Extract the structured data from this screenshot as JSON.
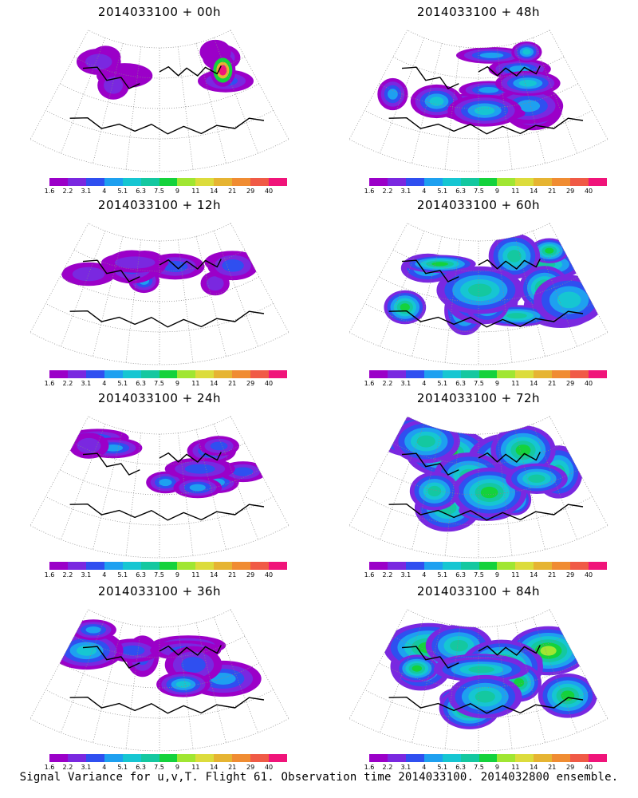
{
  "figure": {
    "caption": "Signal Variance for u,v,T. Flight 61. Observation time 2014033100. 2014032800 ensemble."
  },
  "colorbar": {
    "labels": [
      "1.6",
      "2.2",
      "3.1",
      "4",
      "5.1",
      "6.3",
      "7.5",
      "9",
      "11",
      "14",
      "21",
      "29",
      "40"
    ],
    "colors": [
      "#9b00c8",
      "#7a28e0",
      "#2f4ff0",
      "#1ea0f0",
      "#16c6d2",
      "#14c8a0",
      "#14d23c",
      "#a0e632",
      "#dcdc3c",
      "#e6b432",
      "#f08c32",
      "#f05a46",
      "#f0147a"
    ]
  },
  "panels": [
    {
      "title": "2014033100 + 00h",
      "lead_hours": 0,
      "field_level": 0.08
    },
    {
      "title": "2014033100 + 12h",
      "lead_hours": 12,
      "field_level": 0.22
    },
    {
      "title": "2014033100 + 24h",
      "lead_hours": 24,
      "field_level": 0.3
    },
    {
      "title": "2014033100 + 36h",
      "lead_hours": 36,
      "field_level": 0.38
    },
    {
      "title": "2014033100 + 48h",
      "lead_hours": 48,
      "field_level": 0.46
    },
    {
      "title": "2014033100 + 60h",
      "lead_hours": 60,
      "field_level": 0.58
    },
    {
      "title": "2014033100 + 72h",
      "lead_hours": 72,
      "field_level": 0.66
    },
    {
      "title": "2014033100 + 84h",
      "lead_hours": 84,
      "field_level": 0.72
    }
  ]
}
